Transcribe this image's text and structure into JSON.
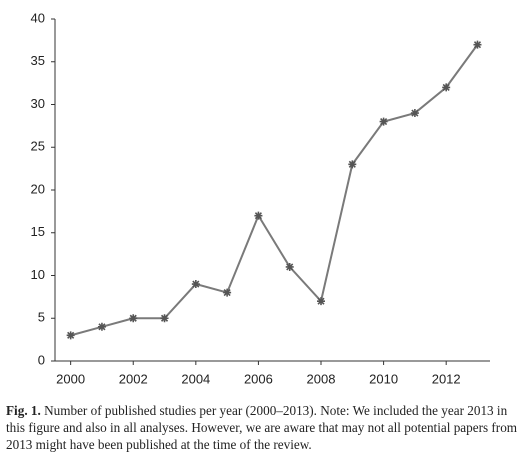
{
  "chart_data": {
    "type": "line",
    "x": [
      2000,
      2001,
      2002,
      2003,
      2004,
      2005,
      2006,
      2007,
      2008,
      2009,
      2010,
      2011,
      2012,
      2013
    ],
    "values": [
      3,
      4,
      5,
      5,
      9,
      8,
      17,
      11,
      7,
      23,
      28,
      29,
      32,
      37
    ],
    "color": "#7a7a7a",
    "marker_color": "#555555",
    "xlim": [
      1999.5,
      2013.4
    ],
    "xticks": [
      2000,
      2002,
      2004,
      2006,
      2008,
      2010,
      2012
    ],
    "ylim": [
      0,
      40
    ],
    "yticks": [
      0,
      5,
      10,
      15,
      20,
      25,
      30,
      35,
      40
    ],
    "grid": false
  },
  "caption": {
    "label": "Fig. 1.",
    "text": "Number of published studies per year (2000–2013). Note: We included the year 2013 in this figure and also in all analyses. However, we are aware that may not all potential papers from 2013 might have been published at the time of the review."
  }
}
